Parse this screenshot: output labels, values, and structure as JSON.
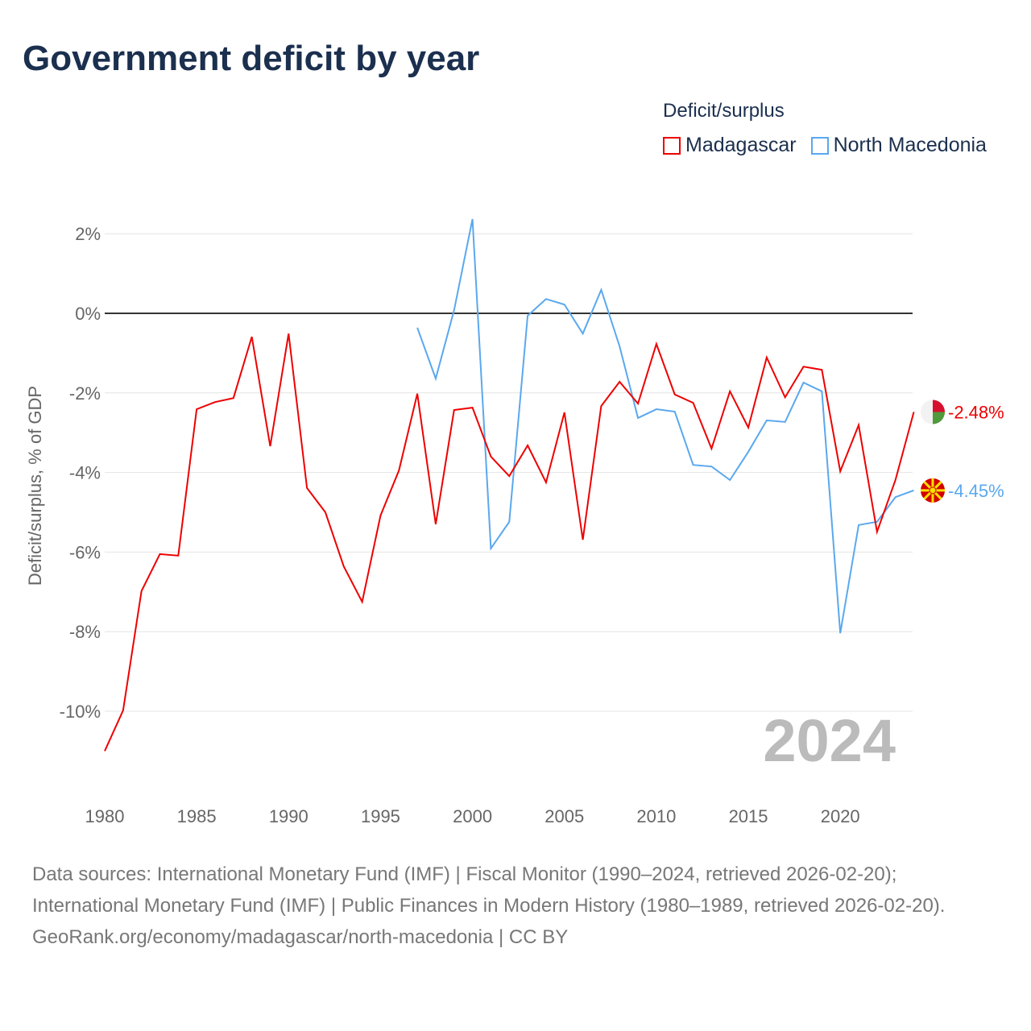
{
  "title": "Government deficit by year",
  "legend": {
    "title": "Deficit/surplus",
    "items": [
      {
        "name": "Madagascar",
        "color": "#ee0000"
      },
      {
        "name": "North Macedonia",
        "color": "#5aa8ee"
      }
    ]
  },
  "chart_data": {
    "type": "line",
    "title": "Government deficit by year",
    "xlabel": "",
    "ylabel": "Deficit/surplus, % of GDP",
    "xlim": [
      1980,
      2024
    ],
    "ylim": [
      -11,
      2.4
    ],
    "x_ticks": [
      1980,
      1985,
      1990,
      1995,
      2000,
      2005,
      2010,
      2015,
      2020
    ],
    "x_tick_labels": [
      "1980",
      "1985",
      "1990",
      "1995",
      "2000",
      "2005",
      "2010",
      "2015",
      "2020"
    ],
    "y_ticks": [
      2,
      0,
      -2,
      -4,
      -6,
      -8,
      -10
    ],
    "y_tick_labels": [
      "2%",
      "0%",
      "-2%",
      "-4%",
      "-6%",
      "-8%",
      "-10%"
    ],
    "year_label": "2024",
    "series": [
      {
        "name": "Madagascar",
        "color": "#ee0000",
        "start": 1980,
        "end_label": "-2.48%",
        "values": [
          -11.0,
          -9.98,
          -6.98,
          -6.05,
          -6.09,
          -2.41,
          -2.23,
          -2.13,
          -0.59,
          -3.34,
          -0.51,
          -4.39,
          -5.0,
          -6.36,
          -7.25,
          -5.08,
          -3.95,
          -2.02,
          -5.3,
          -2.43,
          -2.37,
          -3.6,
          -4.09,
          -3.32,
          -4.25,
          -2.49,
          -5.69,
          -2.33,
          -1.72,
          -2.27,
          -0.77,
          -2.04,
          -2.25,
          -3.4,
          -1.96,
          -2.87,
          -1.11,
          -2.11,
          -1.34,
          -1.42,
          -3.97,
          -2.81,
          -5.49,
          -4.19,
          -2.48
        ]
      },
      {
        "name": "North Macedonia",
        "color": "#5aa8ee",
        "start": 1997,
        "end_label": "-4.45%",
        "values": [
          -0.36,
          -1.64,
          0.08,
          2.37,
          -5.91,
          -5.24,
          -0.06,
          0.36,
          0.22,
          -0.51,
          0.59,
          -0.83,
          -2.63,
          -2.41,
          -2.47,
          -3.81,
          -3.85,
          -4.19,
          -3.48,
          -2.69,
          -2.73,
          -1.74,
          -1.96,
          -8.04,
          -5.32,
          -5.24,
          -4.62,
          -4.45
        ]
      }
    ]
  },
  "footer": {
    "sources": "Data sources: International Monetary Fund (IMF) | Fiscal Monitor (1990–2024, retrieved 2026-02-20); International Monetary Fund (IMF) | Public Finances in Modern History (1980–1989, retrieved 2026-02-20).",
    "credit": "GeoRank.org/economy/madagascar/north-macedonia | CC BY"
  }
}
